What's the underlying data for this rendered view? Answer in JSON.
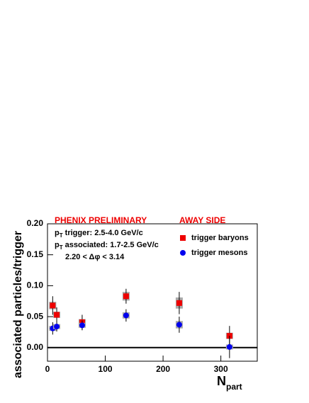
{
  "chart_data": {
    "type": "scatter",
    "title": "PHENIX PRELIMINARY",
    "subtitle": "AWAY SIDE",
    "annotations": [
      {
        "text": "p",
        "sub": "T",
        "rest": " trigger: 2.5-4.0 GeV/c"
      },
      {
        "text": "p",
        "sub": "T",
        "rest": " associated: 1.7-2.5 GeV/c"
      },
      {
        "text": "2.20 < Δφ < 3.14"
      }
    ],
    "x_label": {
      "text": "N",
      "sub": "part"
    },
    "y_label": "associated particles/trigger",
    "x": [
      9,
      16,
      60,
      136,
      228,
      315
    ],
    "series": [
      {
        "name": "trigger baryons",
        "color": "#ee0000",
        "marker": "square",
        "values": [
          0.068,
          0.053,
          0.041,
          0.083,
          0.072,
          0.019
        ],
        "errors": [
          0.015,
          0.012,
          0.012,
          0.012,
          0.018,
          0.016
        ],
        "sys_errors": [
          0.006,
          0.005,
          0.005,
          0.007,
          0.009,
          0.005
        ]
      },
      {
        "name": "trigger mesons",
        "color": "#0000ee",
        "marker": "circle",
        "values": [
          0.031,
          0.034,
          0.036,
          0.052,
          0.037,
          0.001
        ],
        "errors": [
          0.01,
          0.008,
          0.008,
          0.01,
          0.013,
          0.018
        ],
        "sys_errors": [
          0.004,
          0.004,
          0.004,
          0.005,
          0.006,
          0.004
        ]
      }
    ],
    "xlim": [
      0,
      363
    ],
    "ylim": [
      -0.022,
      0.2
    ],
    "xticks": [
      0,
      100,
      200,
      300
    ],
    "yticks": [
      {
        "value": 0,
        "label": "0.00"
      },
      {
        "value": 0.05,
        "label": "0.05"
      },
      {
        "value": 0.1,
        "label": "0.10"
      },
      {
        "value": 0.15,
        "label": "0.15"
      },
      {
        "value": 0.2,
        "label": "0.20"
      }
    ],
    "sys_color": "#aaaaaa"
  }
}
